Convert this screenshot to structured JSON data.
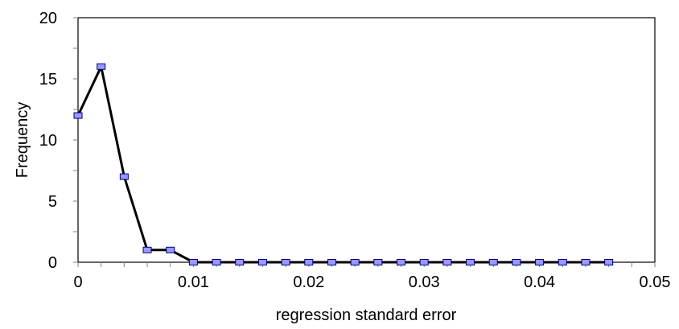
{
  "chart_data": {
    "type": "line",
    "title": "",
    "xlabel": "regression standard error",
    "ylabel": "Frequency",
    "xlim": [
      0,
      0.05
    ],
    "ylim": [
      0,
      20
    ],
    "x_ticks": [
      0,
      0.01,
      0.02,
      0.03,
      0.04,
      0.05
    ],
    "x_tick_labels": [
      "0",
      "0.01",
      "0.02",
      "0.03",
      "0.04",
      "0.05"
    ],
    "y_ticks": [
      0,
      5,
      10,
      15,
      20
    ],
    "y_tick_labels": [
      "0",
      "5",
      "10",
      "15",
      "20"
    ],
    "grid": false,
    "legend": "none",
    "series": [
      {
        "x": [
          0,
          0.002,
          0.004,
          0.006,
          0.008,
          0.01,
          0.012,
          0.014,
          0.016,
          0.018,
          0.02,
          0.022,
          0.024,
          0.026,
          0.028,
          0.03,
          0.032,
          0.034,
          0.036,
          0.038,
          0.04,
          0.042,
          0.044,
          0.046
        ],
        "values": [
          12,
          16,
          7,
          1,
          1,
          0,
          0,
          0,
          0,
          0,
          0,
          0,
          0,
          0,
          0,
          0,
          0,
          0,
          0,
          0,
          0,
          0,
          0,
          0
        ],
        "line_color": "#000000",
        "marker_fill": "#9999ff",
        "marker_stroke": "#000080"
      }
    ]
  }
}
